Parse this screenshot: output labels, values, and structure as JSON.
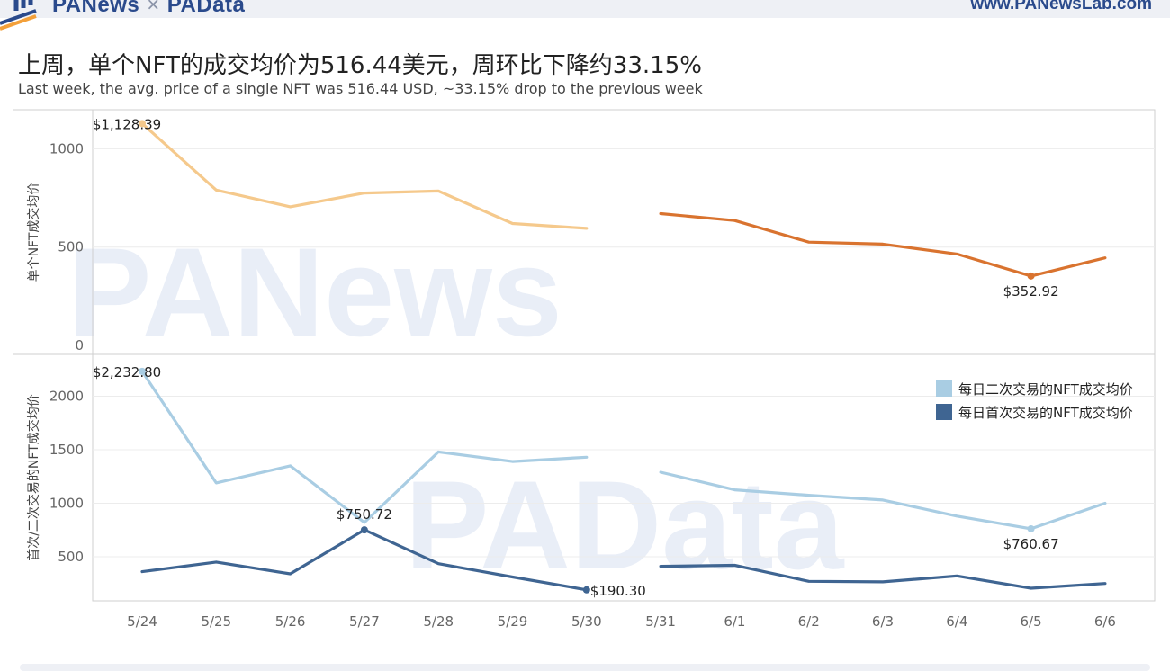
{
  "header": {
    "brand_left": "PANews",
    "brand_sep": "×",
    "brand_right": "PAData",
    "site": "www.PANewsLab.com"
  },
  "watermarks": {
    "top": "PANews",
    "bottom": "PAData"
  },
  "colors": {
    "avg_before": "#f5c98c",
    "avg_after": "#d9732f",
    "secondary": "#a9cde3",
    "primary": "#3f6592",
    "grid": "#ececec",
    "axis_text": "#666666"
  },
  "chart_data": [
    {
      "type": "line",
      "title": "上周，单个NFT的成交均价为516.44美元，周环比下降约33.15%",
      "subtitle": "Last week, the avg. price of a single NFT was 516.44 USD, ~33.15% drop to the previous week",
      "ylabel": "单个NFT成交均价",
      "ylim": [
        0,
        1200
      ],
      "yticks": [
        0,
        500,
        1000
      ],
      "x": [
        "5/24",
        "5/25",
        "5/26",
        "5/27",
        "5/28",
        "5/29",
        "5/30",
        "5/31",
        "6/1",
        "6/2",
        "6/3",
        "6/4",
        "6/5",
        "6/6"
      ],
      "series": [
        {
          "values": [
            1128.39,
            790,
            705,
            775,
            785,
            620,
            595,
            null,
            null,
            null,
            null,
            null,
            null,
            null
          ]
        },
        {
          "values": [
            null,
            null,
            null,
            null,
            null,
            null,
            null,
            670,
            635,
            525,
            515,
            465,
            352.92,
            445
          ]
        }
      ],
      "annotations": [
        {
          "text": "$1,128.39",
          "x": "5/24",
          "value": 1128.39
        },
        {
          "text": "$352.92",
          "x": "6/5",
          "value": 352.92
        }
      ]
    },
    {
      "type": "line",
      "ylabel": "首次/二次交易的NFT成交均价",
      "ylim": [
        0,
        2300
      ],
      "yticks": [
        500,
        1000,
        1500,
        2000
      ],
      "x": [
        "5/24",
        "5/25",
        "5/26",
        "5/27",
        "5/28",
        "5/29",
        "5/30",
        "5/31",
        "6/1",
        "6/2",
        "6/3",
        "6/4",
        "6/5",
        "6/6"
      ],
      "legend_position": "top-right",
      "series": [
        {
          "name": "每日二次交易的NFT成交均价",
          "segments": [
            [
              2232.8,
              1190,
              1350,
              820,
              1480,
              1390,
              1430,
              null,
              null,
              null,
              null,
              null,
              null,
              null
            ],
            [
              null,
              null,
              null,
              null,
              null,
              null,
              null,
              1290,
              1125,
              1075,
              1030,
              880,
              760.67,
              1000
            ]
          ]
        },
        {
          "name": "每日首次交易的NFT成交均价",
          "segments": [
            [
              360,
              450,
              340,
              750.72,
              435,
              310,
              190.3,
              null,
              null,
              null,
              null,
              null,
              null,
              null
            ],
            [
              null,
              null,
              null,
              null,
              null,
              null,
              null,
              410,
              420,
              270,
              265,
              320,
              205,
              250
            ]
          ]
        }
      ],
      "annotations": [
        {
          "text": "$2,232.80",
          "x": "5/24",
          "value": 2232.8
        },
        {
          "text": "$750.72",
          "x": "5/27",
          "value": 750.72
        },
        {
          "text": "$190.30",
          "x": "5/30",
          "value": 190.3
        },
        {
          "text": "$760.67",
          "x": "6/5",
          "value": 760.67
        }
      ]
    }
  ]
}
